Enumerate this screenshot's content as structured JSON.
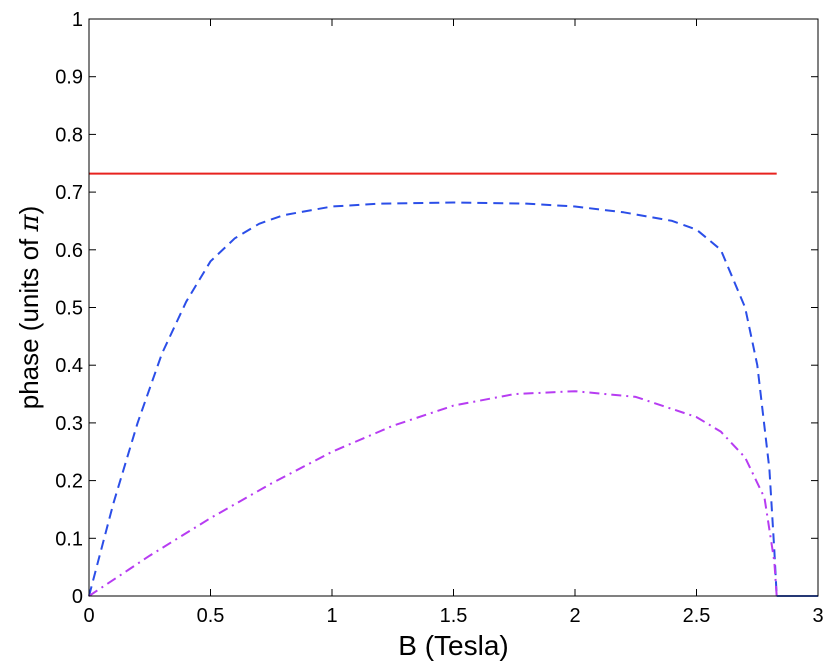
{
  "chart_data": {
    "type": "line",
    "xlabel": "B (Tesla)",
    "ylabel_prefix": "phase (units of ",
    "ylabel_symbol": "π",
    "ylabel_suffix": ")",
    "xlim": [
      0,
      3
    ],
    "ylim": [
      0,
      1
    ],
    "xticks": [
      0,
      0.5,
      1,
      1.5,
      2,
      2.5,
      3
    ],
    "xtick_labels": [
      "0",
      "0.5",
      "1",
      "1.5",
      "2",
      "2.5",
      "3"
    ],
    "yticks": [
      0,
      0.1,
      0.2,
      0.3,
      0.4,
      0.5,
      0.6,
      0.7,
      0.8,
      0.9,
      1
    ],
    "ytick_labels": [
      "0",
      "0.1",
      "0.2",
      "0.3",
      "0.4",
      "0.5",
      "0.6",
      "0.7",
      "0.8",
      "0.9",
      "1"
    ],
    "grid": false,
    "legend": "none",
    "series": [
      {
        "color": "#e8231f",
        "style": "solid",
        "x": [
          0,
          2.83
        ],
        "y": [
          0.732,
          0.732
        ]
      },
      {
        "color": "#2b4ee8",
        "style": "dashed",
        "x": [
          0,
          0.1,
          0.2,
          0.3,
          0.4,
          0.5,
          0.6,
          0.7,
          0.8,
          1.0,
          1.2,
          1.5,
          1.8,
          2.0,
          2.2,
          2.4,
          2.5,
          2.6,
          2.7,
          2.75,
          2.8,
          2.82,
          2.83
        ],
        "y": [
          0,
          0.16,
          0.3,
          0.42,
          0.51,
          0.58,
          0.62,
          0.645,
          0.66,
          0.675,
          0.68,
          0.682,
          0.68,
          0.675,
          0.665,
          0.65,
          0.635,
          0.6,
          0.5,
          0.4,
          0.22,
          0.08,
          0
        ]
      },
      {
        "color": "#b73cf2",
        "style": "dashdot",
        "x": [
          0,
          0.25,
          0.5,
          0.75,
          1.0,
          1.25,
          1.5,
          1.75,
          2.0,
          2.25,
          2.5,
          2.6,
          2.7,
          2.78,
          2.82,
          2.83
        ],
        "y": [
          0,
          0.07,
          0.135,
          0.195,
          0.25,
          0.295,
          0.33,
          0.35,
          0.355,
          0.345,
          0.31,
          0.285,
          0.24,
          0.17,
          0.06,
          0
        ]
      },
      {
        "color": "#4a6fe8",
        "style": "solid",
        "x": [
          2.83,
          3.0
        ],
        "y": [
          0,
          0
        ]
      }
    ]
  }
}
